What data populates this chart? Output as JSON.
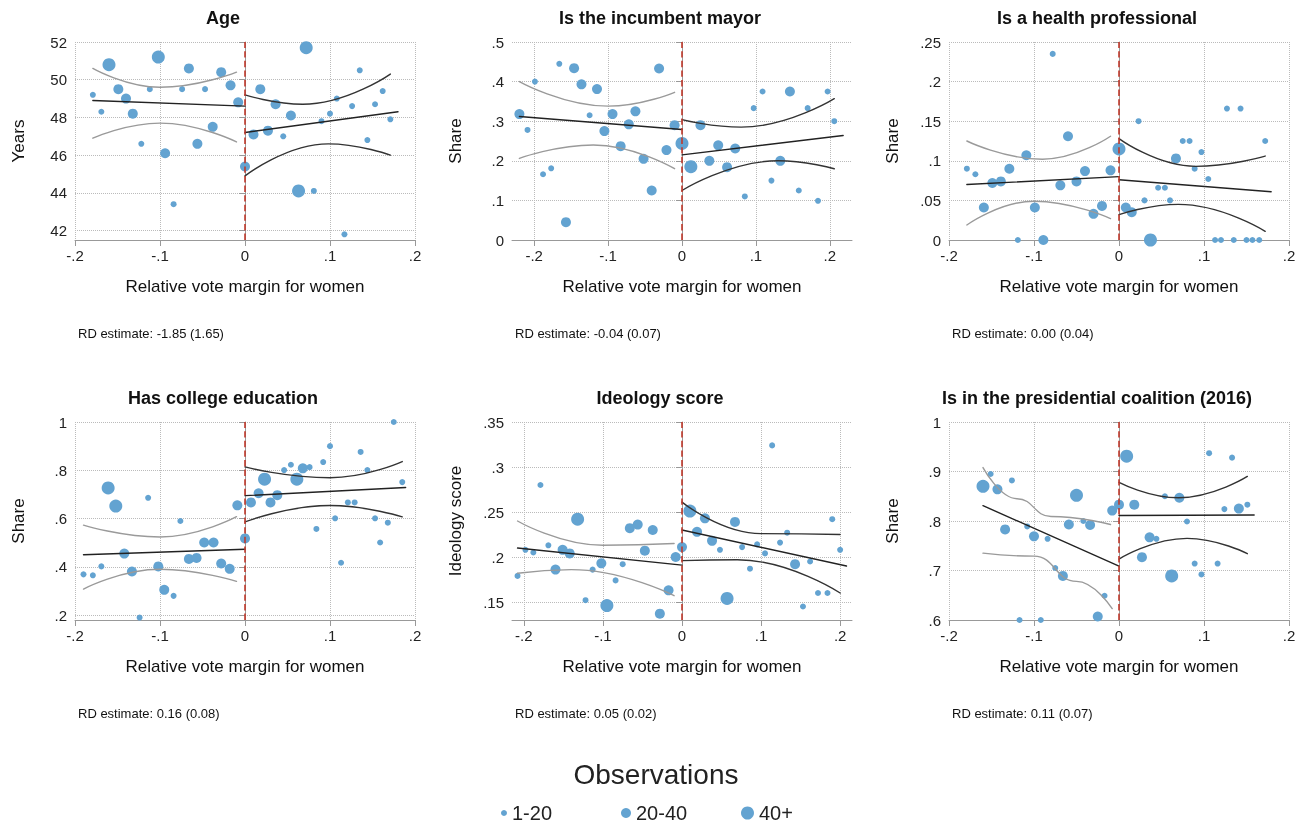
{
  "chart_data": [
    {
      "type": "scatter",
      "title": "Age",
      "xlabel": "Relative vote margin for women",
      "ylabel": "Years",
      "annotations": [
        "RD estimate: -1.85 (1.65)"
      ],
      "legend": "bottom",
      "legend_title": "Observations",
      "marker": "circle",
      "grid": true,
      "xlim": [
        -0.2,
        0.2
      ],
      "xticks": [
        {
          "value": -0.2,
          "label": "-.2"
        },
        {
          "value": -0.1,
          "label": "-.1"
        },
        {
          "value": 0,
          "label": "0"
        },
        {
          "value": 0.1,
          "label": ".1"
        },
        {
          "value": 0.2,
          "label": ".2"
        }
      ],
      "ylim": [
        41.5,
        52
      ],
      "yticks": [
        42,
        44,
        46,
        48,
        50,
        52
      ],
      "ref_lines": [
        {
          "axis": "x",
          "value": 0,
          "color": "#c0392b",
          "line_style": "dashed"
        }
      ],
      "series": [
        {
          "name": "1-20",
          "color": "#63a3d1",
          "x": [
            -0.179,
            -0.169,
            -0.122,
            -0.112,
            -0.084,
            -0.074,
            -0.047,
            0.045,
            0.081,
            0.09,
            0.1,
            0.108,
            0.117,
            0.126,
            0.135,
            0.144,
            0.153,
            0.162,
            0.171
          ],
          "values": [
            49.2,
            48.3,
            46.6,
            49.5,
            43.4,
            49.5,
            49.5,
            47.0,
            44.1,
            47.8,
            48.2,
            49.0,
            41.8,
            48.6,
            50.5,
            46.8,
            48.7,
            49.4,
            47.9
          ]
        },
        {
          "name": "20-40",
          "color": "#63a3d1",
          "x": [
            -0.149,
            -0.14,
            -0.132,
            -0.094,
            -0.066,
            -0.056,
            -0.038,
            -0.028,
            -0.017,
            -0.008,
            0.0,
            0.01,
            0.018,
            0.027,
            0.036,
            0.054
          ],
          "values": [
            49.5,
            49.0,
            48.2,
            46.1,
            50.6,
            46.6,
            47.5,
            50.4,
            49.7,
            48.8,
            45.4,
            47.1,
            49.5,
            47.3,
            48.7,
            48.1
          ]
        },
        {
          "name": "40+",
          "color": "#63a3d1",
          "x": [
            -0.16,
            -0.102,
            0.063,
            0.072
          ],
          "values": [
            50.8,
            51.2,
            44.1,
            51.7
          ]
        },
        {
          "type": "line",
          "marker": "none",
          "color": "#222222",
          "x": [
            -0.179,
            0
          ],
          "values": [
            48.9,
            48.6
          ]
        },
        {
          "type": "line",
          "marker": "none",
          "color": "#222222",
          "x": [
            0,
            0.18
          ],
          "values": [
            47.2,
            48.3
          ]
        },
        {
          "type": "line",
          "marker": "none",
          "color": "#9a9a9a",
          "x": [
            -0.179,
            -0.1,
            -0.01
          ],
          "values": [
            50.6,
            49.6,
            50.4
          ]
        },
        {
          "type": "line",
          "marker": "none",
          "color": "#9a9a9a",
          "x": [
            -0.179,
            -0.1,
            -0.01
          ],
          "values": [
            46.9,
            47.7,
            46.7
          ]
        },
        {
          "type": "line",
          "marker": "none",
          "color": "#333333",
          "x": [
            0,
            0.068,
            0.171
          ],
          "values": [
            49.2,
            48.7,
            50.3
          ]
        },
        {
          "type": "line",
          "marker": "none",
          "color": "#333333",
          "x": [
            0,
            0.098,
            0.171
          ],
          "values": [
            44.9,
            46.6,
            46.0
          ]
        }
      ]
    },
    {
      "type": "scatter",
      "title": "Is the incumbent mayor",
      "xlabel": "Relative vote margin for women",
      "ylabel": "Share",
      "annotations": [
        "RD estimate: -0.04 (0.07)"
      ],
      "marker": "circle",
      "grid": true,
      "xlim": [
        -0.23,
        0.23
      ],
      "xticks": [
        {
          "value": -0.2,
          "label": "-.2"
        },
        {
          "value": -0.1,
          "label": "-.1"
        },
        {
          "value": 0,
          "label": "0"
        },
        {
          "value": 0.1,
          "label": ".1"
        },
        {
          "value": 0.2,
          "label": ".2"
        }
      ],
      "ylim": [
        0,
        0.5
      ],
      "yticks": [
        0,
        {
          "value": 0.1,
          "label": ".1"
        },
        {
          "value": 0.2,
          "label": ".2"
        },
        {
          "value": 0.3,
          "label": ".3"
        },
        {
          "value": 0.4,
          "label": ".4"
        },
        {
          "value": 0.5,
          "label": ".5"
        }
      ],
      "ref_lines": [
        {
          "axis": "x",
          "value": 0,
          "color": "#c0392b",
          "line_style": "dashed"
        }
      ],
      "series": [
        {
          "color": "#63a3d1",
          "x": [
            -0.209,
            -0.199,
            -0.188,
            -0.177,
            -0.166,
            -0.125,
            0.085,
            0.097,
            0.109,
            0.121,
            0.158,
            0.17,
            0.184,
            0.197,
            0.206
          ],
          "values": [
            0.278,
            0.4,
            0.166,
            0.181,
            0.445,
            0.315,
            0.11,
            0.333,
            0.375,
            0.15,
            0.125,
            0.333,
            0.099,
            0.375,
            0.3
          ]
        },
        {
          "color": "#63a3d1",
          "x": [
            -0.22,
            -0.157,
            -0.146,
            -0.136,
            -0.115,
            -0.105,
            -0.094,
            -0.083,
            -0.072,
            -0.063,
            -0.052,
            -0.041,
            -0.031,
            -0.021,
            -0.01,
            0.025,
            0.037,
            0.049,
            0.061,
            0.072,
            0.133,
            0.146
          ],
          "values": [
            0.318,
            0.045,
            0.434,
            0.393,
            0.381,
            0.275,
            0.318,
            0.237,
            0.292,
            0.325,
            0.205,
            0.125,
            0.433,
            0.227,
            0.29,
            0.29,
            0.2,
            0.239,
            0.184,
            0.231,
            0.2,
            0.375
          ]
        },
        {
          "color": "#63a3d1",
          "x": [
            0.0,
            0.012
          ],
          "values": [
            0.244,
            0.185
          ]
        },
        {
          "type": "line",
          "marker": "none",
          "color": "#222222",
          "x": [
            -0.22,
            0
          ],
          "values": [
            0.312,
            0.279
          ]
        },
        {
          "type": "line",
          "marker": "none",
          "color": "#222222",
          "x": [
            0,
            0.218
          ],
          "values": [
            0.215,
            0.264
          ]
        },
        {
          "type": "line",
          "marker": "none",
          "color": "#9a9a9a",
          "x": [
            -0.22,
            -0.1,
            -0.01
          ],
          "values": [
            0.4,
            0.338,
            0.373
          ]
        },
        {
          "type": "line",
          "marker": "none",
          "color": "#9a9a9a",
          "x": [
            -0.22,
            -0.12,
            -0.01
          ],
          "values": [
            0.206,
            0.24,
            0.18
          ]
        },
        {
          "type": "line",
          "marker": "none",
          "color": "#333333",
          "x": [
            0,
            0.08,
            0.206
          ],
          "values": [
            0.304,
            0.285,
            0.357
          ]
        },
        {
          "type": "line",
          "marker": "none",
          "color": "#333333",
          "x": [
            0,
            0.13,
            0.206
          ],
          "values": [
            0.125,
            0.2,
            0.18
          ]
        }
      ]
    },
    {
      "type": "scatter",
      "title": "Is a health professional",
      "xlabel": "Relative vote margin for women",
      "ylabel": "Share",
      "annotations": [
        "RD estimate: 0.00 (0.04)"
      ],
      "marker": "circle",
      "grid": true,
      "xlim": [
        -0.2,
        0.2
      ],
      "xticks": [
        {
          "value": -0.2,
          "label": "-.2"
        },
        {
          "value": -0.1,
          "label": "-.1"
        },
        {
          "value": 0,
          "label": "0"
        },
        {
          "value": 0.1,
          "label": ".1"
        },
        {
          "value": 0.2,
          "label": ".2"
        }
      ],
      "ylim": [
        0,
        0.25
      ],
      "yticks": [
        0,
        {
          "value": 0.05,
          "label": ".05"
        },
        {
          "value": 0.1,
          "label": ".1"
        },
        {
          "value": 0.15,
          "label": ".15"
        },
        {
          "value": 0.2,
          "label": ".2"
        },
        {
          "value": 0.25,
          "label": ".25"
        }
      ],
      "ref_lines": [
        {
          "axis": "x",
          "value": 0,
          "color": "#c0392b",
          "line_style": "dashed"
        }
      ],
      "series": [
        {
          "color": "#63a3d1",
          "x": [
            -0.179,
            -0.169,
            -0.119,
            -0.078,
            0.023,
            0.03,
            0.046,
            0.054,
            0.06,
            0.075,
            0.083,
            0.089,
            0.097,
            0.105,
            0.113,
            0.12,
            0.127,
            0.135,
            0.143,
            0.15,
            0.157,
            0.165,
            0.172
          ],
          "values": [
            0.09,
            0.083,
            0.0,
            0.235,
            0.15,
            0.05,
            0.066,
            0.066,
            0.05,
            0.125,
            0.125,
            0.09,
            0.111,
            0.077,
            0.0,
            0.0,
            0.166,
            0.0,
            0.166,
            0.0,
            0.0,
            0.0,
            0.125
          ]
        },
        {
          "color": "#63a3d1",
          "x": [
            -0.159,
            -0.149,
            -0.139,
            -0.129,
            -0.109,
            -0.099,
            -0.089,
            -0.069,
            -0.06,
            -0.05,
            -0.04,
            -0.03,
            -0.02,
            -0.01,
            0.008,
            0.015,
            0.067
          ],
          "values": [
            0.041,
            0.072,
            0.074,
            0.09,
            0.107,
            0.041,
            0.0,
            0.069,
            0.131,
            0.074,
            0.087,
            0.033,
            0.043,
            0.088,
            0.041,
            0.035,
            0.103
          ]
        },
        {
          "color": "#63a3d1",
          "x": [
            0.0,
            0.037
          ],
          "values": [
            0.115,
            0.0
          ]
        },
        {
          "type": "line",
          "marker": "none",
          "color": "#222222",
          "x": [
            -0.179,
            0
          ],
          "values": [
            0.07,
            0.08
          ]
        },
        {
          "type": "line",
          "marker": "none",
          "color": "#222222",
          "x": [
            0,
            0.179
          ],
          "values": [
            0.076,
            0.061
          ]
        },
        {
          "type": "line",
          "marker": "none",
          "color": "#9a9a9a",
          "x": [
            -0.179,
            -0.09,
            -0.01
          ],
          "values": [
            0.125,
            0.102,
            0.131
          ]
        },
        {
          "type": "line",
          "marker": "none",
          "color": "#9a9a9a",
          "x": [
            -0.179,
            -0.1,
            -0.01
          ],
          "values": [
            0.019,
            0.049,
            0.027
          ]
        },
        {
          "type": "line",
          "marker": "none",
          "color": "#333333",
          "x": [
            0,
            0.09,
            0.172
          ],
          "values": [
            0.128,
            0.093,
            0.106
          ]
        },
        {
          "type": "line",
          "marker": "none",
          "color": "#333333",
          "x": [
            0,
            0.07,
            0.172
          ],
          "values": [
            0.032,
            0.045,
            0.011
          ]
        }
      ]
    },
    {
      "type": "scatter",
      "title": "Has college education",
      "xlabel": "Relative vote margin for women",
      "ylabel": "Share",
      "annotations": [
        "RD estimate: 0.16 (0.08)"
      ],
      "marker": "circle",
      "grid": true,
      "xlim": [
        -0.2,
        0.2
      ],
      "xticks": [
        {
          "value": -0.2,
          "label": "-.2"
        },
        {
          "value": -0.1,
          "label": "-.1"
        },
        {
          "value": 0,
          "label": "0"
        },
        {
          "value": 0.1,
          "label": ".1"
        },
        {
          "value": 0.2,
          "label": ".2"
        }
      ],
      "ylim": [
        0.18,
        1
      ],
      "yticks": [
        {
          "value": 0.2,
          "label": ".2"
        },
        {
          "value": 0.4,
          "label": ".4"
        },
        {
          "value": 0.6,
          "label": ".6"
        },
        {
          "value": 0.8,
          "label": ".8"
        },
        1
      ],
      "ref_lines": [
        {
          "axis": "x",
          "value": 0,
          "color": "#c0392b",
          "line_style": "dashed"
        }
      ],
      "series": [
        {
          "color": "#63a3d1",
          "x": [
            -0.19,
            -0.179,
            -0.169,
            -0.124,
            -0.114,
            -0.084,
            -0.076,
            0.046,
            0.054,
            0.076,
            0.084,
            0.092,
            0.1,
            0.106,
            0.113,
            0.121,
            0.129,
            0.136,
            0.144,
            0.153,
            0.159,
            0.168,
            0.175,
            0.185
          ],
          "values": [
            0.369,
            0.365,
            0.402,
            0.19,
            0.686,
            0.28,
            0.59,
            0.801,
            0.823,
            0.813,
            0.557,
            0.834,
            0.9,
            0.601,
            0.417,
            0.667,
            0.667,
            0.876,
            0.801,
            0.601,
            0.501,
            0.583,
            1.0,
            0.751
          ]
        },
        {
          "color": "#63a3d1",
          "x": [
            -0.142,
            -0.133,
            -0.102,
            -0.095,
            -0.066,
            -0.057,
            -0.048,
            -0.037,
            -0.028,
            -0.018,
            -0.009,
            0.0,
            0.007,
            0.016,
            0.03,
            0.038,
            0.068
          ],
          "values": [
            0.455,
            0.381,
            0.402,
            0.305,
            0.433,
            0.437,
            0.501,
            0.501,
            0.414,
            0.392,
            0.655,
            0.518,
            0.667,
            0.705,
            0.667,
            0.697,
            0.808
          ]
        },
        {
          "color": "#63a3d1",
          "x": [
            -0.161,
            -0.152,
            0.023,
            0.061
          ],
          "values": [
            0.727,
            0.652,
            0.763,
            0.763
          ]
        },
        {
          "type": "line",
          "marker": "none",
          "color": "#222222",
          "x": [
            -0.19,
            0
          ],
          "values": [
            0.45,
            0.473
          ]
        },
        {
          "type": "line",
          "marker": "none",
          "color": "#222222",
          "x": [
            0,
            0.189
          ],
          "values": [
            0.695,
            0.729
          ]
        },
        {
          "type": "line",
          "marker": "none",
          "color": "#9a9a9a",
          "x": [
            -0.19,
            -0.1,
            -0.01
          ],
          "values": [
            0.573,
            0.524,
            0.608
          ]
        },
        {
          "type": "line",
          "marker": "none",
          "color": "#9a9a9a",
          "x": [
            -0.19,
            -0.1,
            -0.01
          ],
          "values": [
            0.308,
            0.39,
            0.34
          ]
        },
        {
          "type": "line",
          "marker": "none",
          "color": "#333333",
          "x": [
            0,
            0.1,
            0.185
          ],
          "values": [
            0.814,
            0.769,
            0.836
          ]
        },
        {
          "type": "line",
          "marker": "none",
          "color": "#333333",
          "x": [
            0,
            0.1,
            0.185
          ],
          "values": [
            0.586,
            0.654,
            0.607
          ]
        }
      ]
    },
    {
      "type": "scatter",
      "title": "Ideology score",
      "xlabel": "Relative vote margin for women",
      "ylabel": "Ideology score",
      "annotations": [
        "RD estimate: 0.05 (0.02)"
      ],
      "marker": "circle",
      "grid": true,
      "xlim": [
        -0.215,
        0.215
      ],
      "xticks": [
        {
          "value": -0.2,
          "label": "-.2"
        },
        {
          "value": -0.1,
          "label": "-.1"
        },
        {
          "value": 0,
          "label": "0"
        },
        {
          "value": 0.1,
          "label": ".1"
        },
        {
          "value": 0.2,
          "label": ".2"
        }
      ],
      "ylim": [
        0.13,
        0.35
      ],
      "yticks": [
        {
          "value": 0.15,
          "label": ".15"
        },
        {
          "value": 0.2,
          "label": ".2"
        },
        {
          "value": 0.25,
          "label": ".25"
        },
        {
          "value": 0.3,
          "label": ".3"
        },
        {
          "value": 0.35,
          "label": ".35"
        }
      ],
      "ref_lines": [
        {
          "axis": "x",
          "value": 0,
          "color": "#c0392b",
          "line_style": "dashed"
        }
      ],
      "series": [
        {
          "color": "#63a3d1",
          "x": [
            -0.208,
            -0.198,
            -0.188,
            -0.179,
            -0.169,
            -0.122,
            -0.113,
            -0.084,
            -0.075,
            0.048,
            0.076,
            0.086,
            0.095,
            0.105,
            0.114,
            0.124,
            0.133,
            0.153,
            0.162,
            0.172,
            0.184,
            0.19,
            0.2
          ],
          "values": [
            0.179,
            0.208,
            0.205,
            0.28,
            0.213,
            0.152,
            0.186,
            0.174,
            0.192,
            0.208,
            0.211,
            0.187,
            0.214,
            0.204,
            0.324,
            0.216,
            0.227,
            0.145,
            0.195,
            0.16,
            0.16,
            0.242,
            0.208
          ]
        },
        {
          "color": "#63a3d1",
          "x": [
            -0.16,
            -0.151,
            -0.142,
            -0.102,
            -0.066,
            -0.056,
            -0.047,
            -0.037,
            -0.028,
            -0.017,
            -0.008,
            0.0,
            0.019,
            0.029,
            0.038,
            0.067,
            0.143
          ],
          "values": [
            0.186,
            0.208,
            0.204,
            0.193,
            0.232,
            0.236,
            0.207,
            0.23,
            0.137,
            0.163,
            0.2,
            0.211,
            0.228,
            0.243,
            0.218,
            0.239,
            0.192
          ]
        },
        {
          "color": "#63a3d1",
          "x": [
            -0.132,
            -0.095,
            0.01,
            0.057
          ],
          "values": [
            0.242,
            0.146,
            0.251,
            0.154
          ]
        },
        {
          "type": "line",
          "marker": "none",
          "color": "#222222",
          "x": [
            -0.208,
            0
          ],
          "values": [
            0.21,
            0.191
          ]
        },
        {
          "type": "line",
          "marker": "none",
          "color": "#222222",
          "x": [
            0,
            0.208
          ],
          "values": [
            0.23,
            0.19
          ]
        },
        {
          "type": "line",
          "marker": "none",
          "color": "#9a9a9a",
          "x": [
            -0.208,
            -0.1,
            -0.01
          ],
          "values": [
            0.24,
            0.213,
            0.215
          ]
        },
        {
          "type": "line",
          "marker": "none",
          "color": "#9a9a9a",
          "x": [
            -0.208,
            -0.14,
            -0.01
          ],
          "values": [
            0.182,
            0.186,
            0.157
          ]
        },
        {
          "type": "line",
          "marker": "none",
          "color": "#333333",
          "x": [
            0,
            0.1,
            0.2
          ],
          "values": [
            0.261,
            0.226,
            0.225
          ]
        },
        {
          "type": "line",
          "marker": "none",
          "color": "#333333",
          "x": [
            0,
            0.07,
            0.2
          ],
          "values": [
            0.196,
            0.197,
            0.16
          ]
        }
      ]
    },
    {
      "type": "scatter",
      "title": "Is in the presidential coalition (2016)",
      "xlabel": "Relative vote margin for women",
      "ylabel": "Share",
      "annotations": [
        "RD estimate: 0.11 (0.07)"
      ],
      "marker": "circle",
      "grid": true,
      "xlim": [
        -0.2,
        0.2
      ],
      "xticks": [
        {
          "value": -0.2,
          "label": "-.2"
        },
        {
          "value": -0.1,
          "label": "-.1"
        },
        {
          "value": 0,
          "label": "0"
        },
        {
          "value": 0.1,
          "label": ".1"
        },
        {
          "value": 0.2,
          "label": ".2"
        }
      ],
      "ylim": [
        0.6,
        1
      ],
      "yticks": [
        {
          "value": 0.6,
          "label": ".6"
        },
        {
          "value": 0.7,
          "label": ".7"
        },
        {
          "value": 0.8,
          "label": ".8"
        },
        {
          "value": 0.9,
          "label": ".9"
        },
        1
      ],
      "ref_lines": [
        {
          "axis": "x",
          "value": 0,
          "color": "#c0392b",
          "line_style": "dashed"
        }
      ],
      "series": [
        {
          "color": "#63a3d1",
          "x": [
            -0.151,
            -0.126,
            -0.117,
            -0.108,
            -0.092,
            -0.084,
            -0.075,
            -0.042,
            -0.017,
            0.044,
            0.054,
            0.08,
            0.089,
            0.097,
            0.106,
            0.116,
            0.124,
            0.133,
            0.151
          ],
          "values": [
            0.895,
            0.882,
            0.6,
            0.789,
            0.6,
            0.764,
            0.705,
            0.8,
            0.649,
            0.764,
            0.85,
            0.799,
            0.714,
            0.692,
            0.937,
            0.714,
            0.824,
            0.928,
            0.833
          ]
        },
        {
          "color": "#63a3d1",
          "x": [
            -0.143,
            -0.134,
            -0.1,
            -0.066,
            -0.059,
            -0.034,
            -0.025,
            -0.008,
            0.0,
            0.018,
            0.027,
            0.036,
            0.071,
            0.141
          ],
          "values": [
            0.864,
            0.783,
            0.769,
            0.689,
            0.793,
            0.792,
            0.607,
            0.821,
            0.833,
            0.833,
            0.727,
            0.767,
            0.847,
            0.825
          ]
        },
        {
          "color": "#63a3d1",
          "x": [
            -0.16,
            -0.05,
            0.009,
            0.062
          ],
          "values": [
            0.87,
            0.852,
            0.931,
            0.689
          ]
        },
        {
          "type": "line",
          "marker": "none",
          "color": "#222222",
          "x": [
            -0.16,
            0
          ],
          "values": [
            0.831,
            0.709
          ]
        },
        {
          "type": "line",
          "marker": "none",
          "color": "#222222",
          "x": [
            0,
            0.159
          ],
          "values": [
            0.811,
            0.812
          ]
        },
        {
          "type": "line",
          "marker": "none",
          "color": "#9a9a9a",
          "x": [
            -0.16,
            -0.12,
            -0.08,
            -0.01
          ],
          "values": [
            0.908,
            0.845,
            0.809,
            0.793
          ]
        },
        {
          "type": "line",
          "marker": "none",
          "color": "#9a9a9a",
          "x": [
            -0.16,
            -0.1,
            -0.05,
            -0.008
          ],
          "values": [
            0.735,
            0.729,
            0.678,
            0.623
          ]
        },
        {
          "type": "line",
          "marker": "none",
          "color": "#333333",
          "x": [
            0,
            0.07,
            0.151
          ],
          "values": [
            0.878,
            0.847,
            0.89
          ]
        },
        {
          "type": "line",
          "marker": "none",
          "color": "#333333",
          "x": [
            0,
            0.08,
            0.151
          ],
          "values": [
            0.723,
            0.765,
            0.734
          ]
        }
      ]
    }
  ]
}
